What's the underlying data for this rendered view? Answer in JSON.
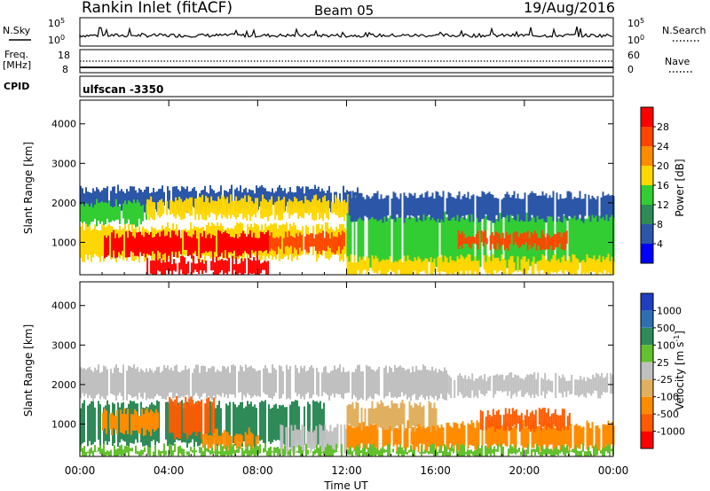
{
  "header": {
    "station": "Rankin Inlet (fitACF)",
    "beam": "Beam 05",
    "date": "19/Aug/2016"
  },
  "nsky_panel": {
    "left_label": "N.Sky",
    "left_ticks": [
      "10^5",
      "10^0"
    ],
    "right_label": "N.Search",
    "right_ticks": [
      "10^5",
      "10^0"
    ],
    "right_legend_style": "dotted"
  },
  "freq_panel": {
    "left_label_line1": "Freq.",
    "left_label_line2": "[MHz]",
    "left_ticks": [
      "18",
      "8"
    ],
    "right_label": "Nave",
    "right_ticks": [
      "60",
      "0"
    ],
    "right_legend_style": "dotted"
  },
  "cpid_panel": {
    "left_label": "CPID",
    "program": "ulfscan -3350"
  },
  "colors": {
    "power_scale": [
      "#0000ff",
      "#2c57a8",
      "#2e8b57",
      "#32cd32",
      "#ffd700",
      "#ff8c00",
      "#ff4500",
      "#ff0000"
    ],
    "velocity_scale": [
      "#1f3fbf",
      "#2f6faf",
      "#2e8b57",
      "#63c02f",
      "#c0c0c0",
      "#e0b060",
      "#ff8c00",
      "#ff5a00",
      "#ff0000"
    ]
  },
  "chart_data": [
    {
      "type": "heatmap",
      "name": "power-panel",
      "ylabel": "Slant Range [km]",
      "xlabel": "",
      "x_ticks": [
        "00:00",
        "04:00",
        "08:00",
        "12:00",
        "16:00",
        "20:00",
        "00:00"
      ],
      "x_range_hours": [
        0,
        24
      ],
      "y_ticks": [
        1000,
        2000,
        3000,
        4000
      ],
      "ylim": [
        180,
        4600
      ],
      "colorbar": {
        "label": "Power [dB]",
        "ticks": [
          4,
          8,
          12,
          16,
          20,
          24,
          28
        ],
        "range": [
          0,
          32
        ]
      },
      "bands": [
        {
          "t0": 0,
          "t1": 12.5,
          "r0": 1850,
          "r1": 2350,
          "value": 4
        },
        {
          "t0": 0,
          "t1": 3,
          "r0": 1500,
          "r1": 2000,
          "value": 12
        },
        {
          "t0": 3,
          "t1": 12.5,
          "r0": 1650,
          "r1": 2100,
          "value": 16
        },
        {
          "t0": 0,
          "t1": 12,
          "r0": 600,
          "r1": 1400,
          "value": 18
        },
        {
          "t0": 1,
          "t1": 8.5,
          "r0": 700,
          "r1": 1200,
          "value": 28
        },
        {
          "t0": 3,
          "t1": 8.5,
          "r0": 200,
          "r1": 550,
          "value": 30
        },
        {
          "t0": 8.5,
          "t1": 12,
          "r0": 800,
          "r1": 1200,
          "value": 24
        },
        {
          "t0": 12,
          "t1": 24,
          "r0": 400,
          "r1": 1700,
          "value": 14
        },
        {
          "t0": 17,
          "t1": 22,
          "r0": 900,
          "r1": 1200,
          "value": 26
        },
        {
          "t0": 12,
          "t1": 24,
          "r0": 1600,
          "r1": 2200,
          "value": 6
        },
        {
          "t0": 12,
          "t1": 24,
          "r0": 200,
          "r1": 600,
          "value": 18
        }
      ]
    },
    {
      "type": "heatmap",
      "name": "velocity-panel",
      "ylabel": "Slant Range [km]",
      "xlabel": "Time UT",
      "x_ticks": [
        "00:00",
        "04:00",
        "08:00",
        "12:00",
        "16:00",
        "20:00",
        "00:00"
      ],
      "x_range_hours": [
        0,
        24
      ],
      "y_ticks": [
        1000,
        2000,
        3000,
        4000
      ],
      "ylim": [
        180,
        4600
      ],
      "colorbar": {
        "label": "Velocity [m s^-1]",
        "ticks": [
          "1000",
          "500",
          "100",
          "25",
          "-25",
          "-100",
          "-500",
          "-1000"
        ]
      },
      "bands": [
        {
          "t0": 0,
          "t1": 16.5,
          "r0": 1700,
          "r1": 2400,
          "value": "25"
        },
        {
          "t0": 16.5,
          "t1": 24,
          "r0": 1750,
          "r1": 2200,
          "value": "25"
        },
        {
          "t0": 0,
          "t1": 11,
          "r0": 500,
          "r1": 1500,
          "value": "500"
        },
        {
          "t0": 1,
          "t1": 3.5,
          "r0": 800,
          "r1": 1300,
          "value": "-100"
        },
        {
          "t0": 4,
          "t1": 6,
          "r0": 700,
          "r1": 1600,
          "value": "-500"
        },
        {
          "t0": 5.5,
          "t1": 8,
          "r0": 400,
          "r1": 800,
          "value": "-100"
        },
        {
          "t0": 9,
          "t1": 12,
          "r0": 300,
          "r1": 900,
          "value": "25"
        },
        {
          "t0": 12,
          "t1": 24,
          "r0": 400,
          "r1": 1000,
          "value": "-100"
        },
        {
          "t0": 18,
          "t1": 22,
          "r0": 900,
          "r1": 1300,
          "value": "-500"
        },
        {
          "t0": 12,
          "t1": 16,
          "r0": 900,
          "r1": 1500,
          "value": "-25"
        },
        {
          "t0": 0,
          "t1": 24,
          "r0": 200,
          "r1": 400,
          "value": "100"
        }
      ]
    }
  ]
}
